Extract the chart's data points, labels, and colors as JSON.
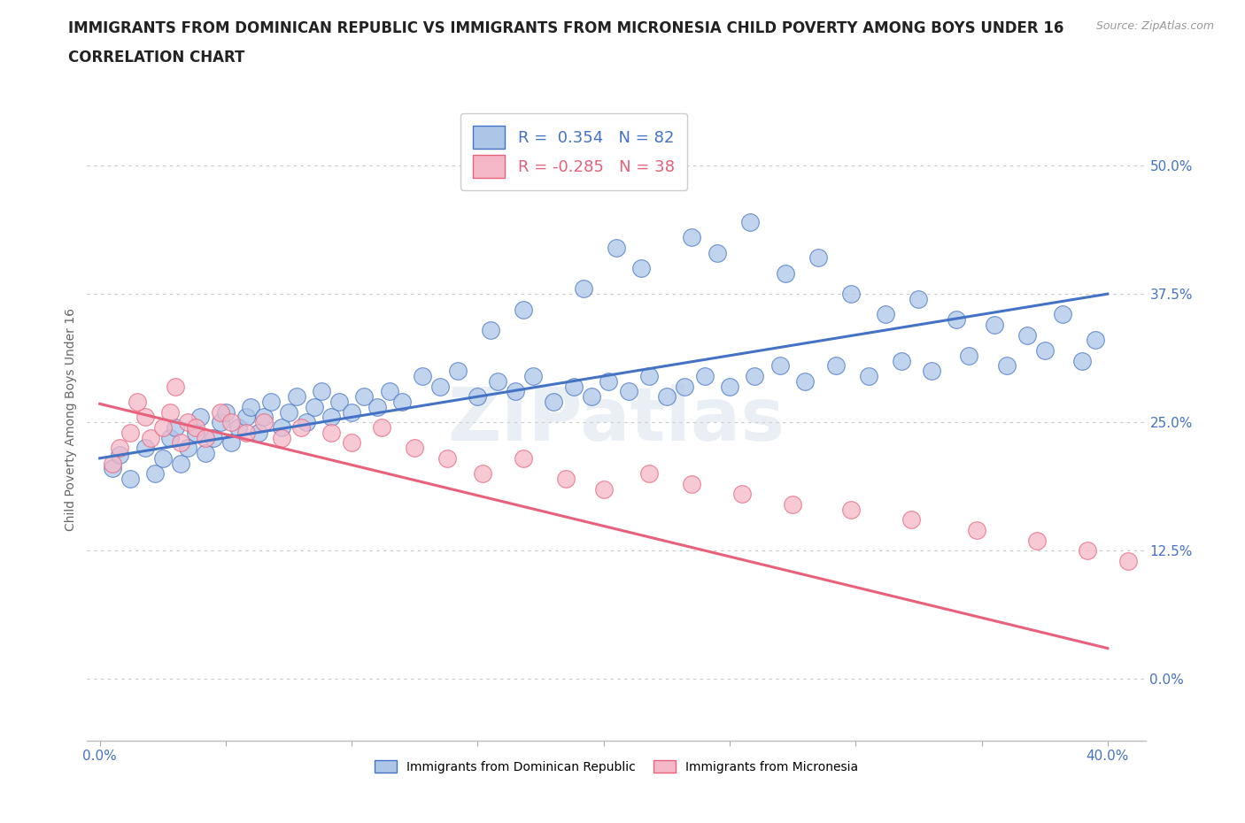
{
  "title_line1": "IMMIGRANTS FROM DOMINICAN REPUBLIC VS IMMIGRANTS FROM MICRONESIA CHILD POVERTY AMONG BOYS UNDER 16",
  "title_line2": "CORRELATION CHART",
  "source_text": "Source: ZipAtlas.com",
  "ylabel": "Child Poverty Among Boys Under 16",
  "xlim": [
    -0.005,
    0.415
  ],
  "ylim": [
    -0.06,
    0.565
  ],
  "yticks": [
    0.0,
    0.125,
    0.25,
    0.375,
    0.5
  ],
  "ytick_labels": [
    "0.0%",
    "12.5%",
    "25.0%",
    "37.5%",
    "50.0%"
  ],
  "xticks": [
    0.0,
    0.05,
    0.1,
    0.15,
    0.2,
    0.25,
    0.3,
    0.35,
    0.4
  ],
  "xtick_labels": [
    "0.0%",
    "",
    "",
    "",
    "",
    "",
    "",
    "",
    "40.0%"
  ],
  "blue_R": 0.354,
  "blue_N": 82,
  "pink_R": -0.285,
  "pink_N": 38,
  "blue_color": "#adc6e8",
  "pink_color": "#f5b8c8",
  "blue_line_color": "#4472c4",
  "pink_line_color": "#e8607a",
  "watermark": "ZIPatlas",
  "legend_label_blue": "Immigrants from Dominican Republic",
  "legend_label_pink": "Immigrants from Micronesia",
  "blue_scatter_x": [
    0.005,
    0.008,
    0.012,
    0.018,
    0.022,
    0.025,
    0.028,
    0.03,
    0.032,
    0.035,
    0.038,
    0.04,
    0.042,
    0.045,
    0.048,
    0.05,
    0.052,
    0.055,
    0.058,
    0.06,
    0.063,
    0.065,
    0.068,
    0.072,
    0.075,
    0.078,
    0.082,
    0.085,
    0.088,
    0.092,
    0.095,
    0.1,
    0.105,
    0.11,
    0.115,
    0.12,
    0.128,
    0.135,
    0.142,
    0.15,
    0.158,
    0.165,
    0.172,
    0.18,
    0.188,
    0.195,
    0.202,
    0.21,
    0.218,
    0.225,
    0.232,
    0.24,
    0.25,
    0.26,
    0.27,
    0.28,
    0.292,
    0.305,
    0.318,
    0.33,
    0.345,
    0.36,
    0.375,
    0.39,
    0.155,
    0.168,
    0.192,
    0.205,
    0.215,
    0.235,
    0.245,
    0.258,
    0.272,
    0.285,
    0.298,
    0.312,
    0.325,
    0.34,
    0.355,
    0.368,
    0.382,
    0.395
  ],
  "blue_scatter_y": [
    0.205,
    0.218,
    0.195,
    0.225,
    0.2,
    0.215,
    0.235,
    0.245,
    0.21,
    0.225,
    0.24,
    0.255,
    0.22,
    0.235,
    0.25,
    0.26,
    0.23,
    0.245,
    0.255,
    0.265,
    0.24,
    0.255,
    0.27,
    0.245,
    0.26,
    0.275,
    0.25,
    0.265,
    0.28,
    0.255,
    0.27,
    0.26,
    0.275,
    0.265,
    0.28,
    0.27,
    0.295,
    0.285,
    0.3,
    0.275,
    0.29,
    0.28,
    0.295,
    0.27,
    0.285,
    0.275,
    0.29,
    0.28,
    0.295,
    0.275,
    0.285,
    0.295,
    0.285,
    0.295,
    0.305,
    0.29,
    0.305,
    0.295,
    0.31,
    0.3,
    0.315,
    0.305,
    0.32,
    0.31,
    0.34,
    0.36,
    0.38,
    0.42,
    0.4,
    0.43,
    0.415,
    0.445,
    0.395,
    0.41,
    0.375,
    0.355,
    0.37,
    0.35,
    0.345,
    0.335,
    0.355,
    0.33
  ],
  "pink_scatter_x": [
    0.005,
    0.008,
    0.012,
    0.018,
    0.02,
    0.025,
    0.028,
    0.032,
    0.035,
    0.038,
    0.042,
    0.048,
    0.052,
    0.058,
    0.065,
    0.072,
    0.08,
    0.092,
    0.1,
    0.112,
    0.125,
    0.138,
    0.152,
    0.168,
    0.185,
    0.2,
    0.218,
    0.235,
    0.255,
    0.275,
    0.298,
    0.322,
    0.348,
    0.372,
    0.392,
    0.408,
    0.015,
    0.03
  ],
  "pink_scatter_y": [
    0.21,
    0.225,
    0.24,
    0.255,
    0.235,
    0.245,
    0.26,
    0.23,
    0.25,
    0.245,
    0.235,
    0.26,
    0.25,
    0.24,
    0.25,
    0.235,
    0.245,
    0.24,
    0.23,
    0.245,
    0.225,
    0.215,
    0.2,
    0.215,
    0.195,
    0.185,
    0.2,
    0.19,
    0.18,
    0.17,
    0.165,
    0.155,
    0.145,
    0.135,
    0.125,
    0.115,
    0.27,
    0.285
  ],
  "blue_trend_x": [
    0.0,
    0.4
  ],
  "blue_trend_y": [
    0.215,
    0.375
  ],
  "pink_trend_x": [
    0.0,
    0.4
  ],
  "pink_trend_y": [
    0.268,
    0.03
  ],
  "hline_y": [
    0.0,
    0.125,
    0.25,
    0.375,
    0.5
  ],
  "hline_color": "#c8c8c8",
  "hline_style": "dotted",
  "title_fontsize": 12,
  "tick_fontsize": 11
}
